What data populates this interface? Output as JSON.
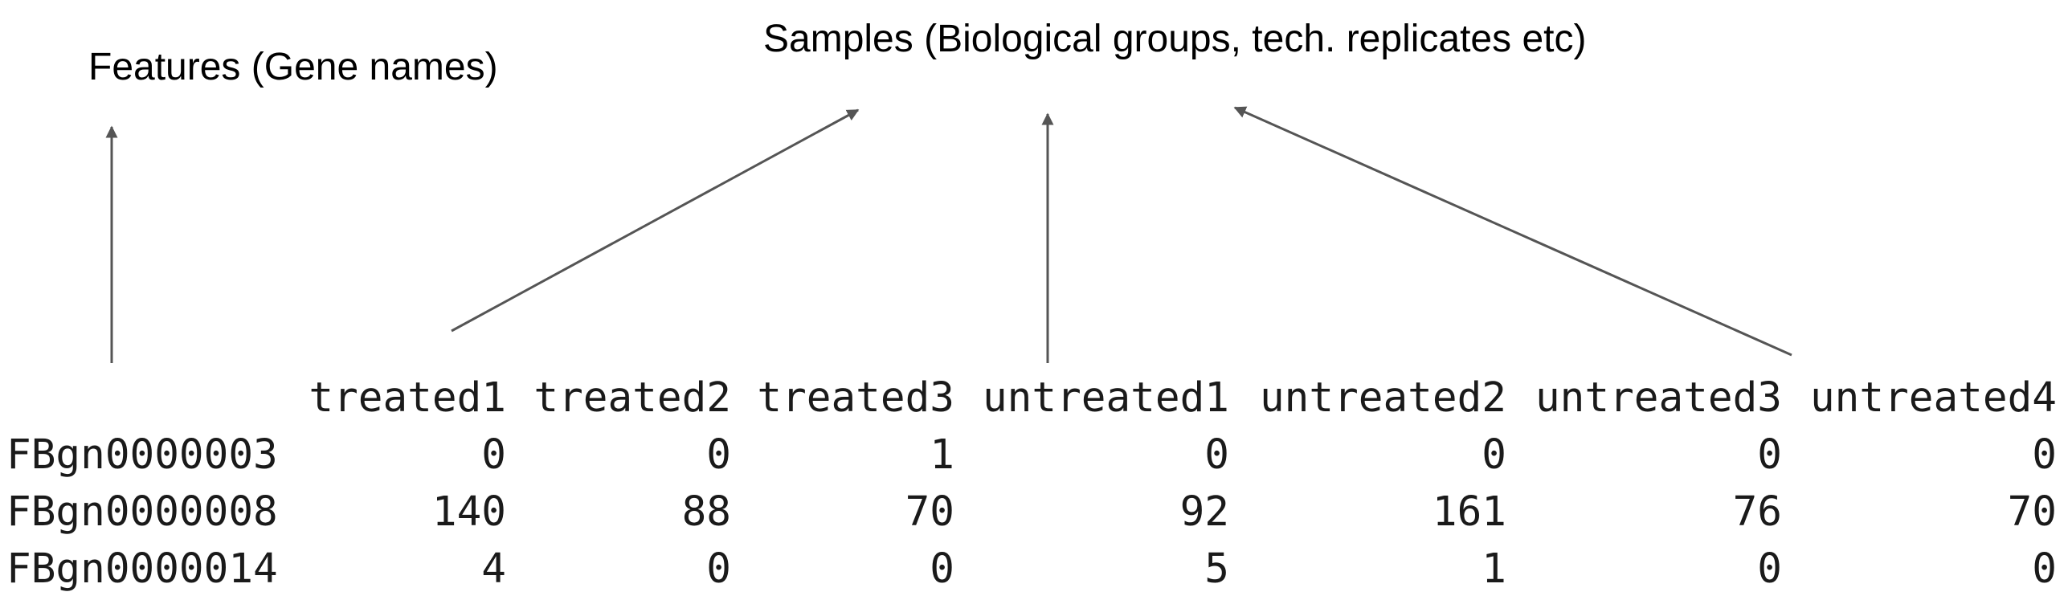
{
  "annotations": {
    "features": "Features (Gene names)",
    "samples": "Samples (Biological groups, tech. replicates etc)"
  },
  "table": {
    "columns": [
      "treated1",
      "treated2",
      "treated3",
      "untreated1",
      "untreated2",
      "untreated3",
      "untreated4"
    ],
    "rows": [
      {
        "gene": "FBgn0000003",
        "counts": [
          "0",
          "0",
          "1",
          "0",
          "0",
          "0",
          "0"
        ]
      },
      {
        "gene": "FBgn0000008",
        "counts": [
          "140",
          "88",
          "70",
          "92",
          "161",
          "76",
          "70"
        ]
      },
      {
        "gene": "FBgn0000014",
        "counts": [
          "4",
          "0",
          "0",
          "5",
          "1",
          "0",
          "0"
        ]
      }
    ]
  },
  "colors": {
    "arrow": "#555555",
    "text": "#000000"
  }
}
